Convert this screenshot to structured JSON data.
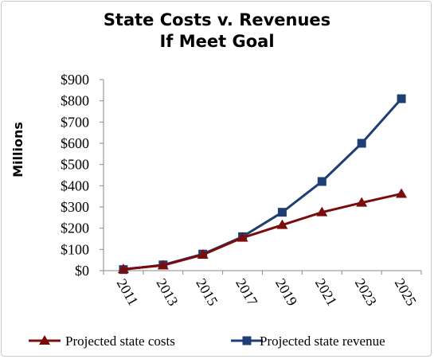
{
  "chart_data": {
    "type": "line",
    "title": "State Costs v. Revenues",
    "subtitle": "If Meet Goal",
    "xlabel": "",
    "ylabel": "Millions",
    "categories": [
      "2011",
      "2013",
      "2015",
      "2017",
      "2019",
      "2021",
      "2023",
      "2025"
    ],
    "y_tick_labels": [
      "$0",
      "$100",
      "$200",
      "$300",
      "$400",
      "$500",
      "$600",
      "$700",
      "$800",
      "$900"
    ],
    "ylim": [
      0,
      900
    ],
    "grid": false,
    "legend_position": "bottom",
    "series": [
      {
        "name": "Projected state costs",
        "color": "#7b0c0c",
        "marker": "triangle",
        "values": [
          7,
          25,
          75,
          155,
          215,
          275,
          320,
          362
        ]
      },
      {
        "name": "Projected state revenue",
        "color": "#1f3f74",
        "marker": "square",
        "values": [
          5,
          27,
          78,
          160,
          275,
          420,
          600,
          810
        ]
      }
    ]
  }
}
